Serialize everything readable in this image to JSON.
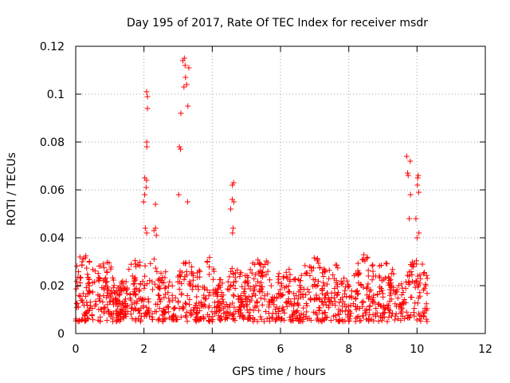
{
  "chart_data": {
    "type": "scatter",
    "title": "Day 195 of 2017, Rate Of TEC Index for receiver msdr",
    "xlabel": "GPS time / hours",
    "ylabel": "ROTI / TECUs",
    "xlim": [
      0,
      12
    ],
    "ylim": [
      0,
      0.12
    ],
    "xticks": [
      0,
      2,
      4,
      6,
      8,
      10,
      12
    ],
    "yticks": [
      0,
      0.02,
      0.04,
      0.06,
      0.08,
      0.1,
      0.12
    ],
    "xtick_labels": [
      "0",
      "2",
      "4",
      "6",
      "8",
      "10",
      "12"
    ],
    "ytick_labels": [
      "0",
      "0.02",
      "0.04",
      "0.06",
      "0.08",
      "0.1",
      "0.12"
    ],
    "grid": true,
    "marker": "+",
    "series": [
      {
        "name": "ROTI",
        "color": "#ff0000",
        "description": "Dense band 0.005-0.035 TECU across 0-10.3 h with isolated peaks",
        "background_range": [
          0.005,
          0.035
        ],
        "x_range": [
          0.0,
          10.3
        ],
        "peaks": [
          {
            "x": 2.05,
            "values": [
              0.101,
              0.099,
              0.094,
              0.08,
              0.078,
              0.065,
              0.064,
              0.061,
              0.058,
              0.055,
              0.044,
              0.042
            ]
          },
          {
            "x": 2.35,
            "values": [
              0.054,
              0.044,
              0.043,
              0.041
            ]
          },
          {
            "x": 3.05,
            "values": [
              0.058,
              0.078,
              0.077,
              0.092
            ]
          },
          {
            "x": 3.2,
            "values": [
              0.115,
              0.114,
              0.112,
              0.107,
              0.104,
              0.103
            ]
          },
          {
            "x": 3.3,
            "values": [
              0.111,
              0.095,
              0.055
            ]
          },
          {
            "x": 4.6,
            "values": [
              0.063,
              0.062,
              0.056,
              0.055,
              0.052,
              0.044,
              0.042
            ]
          },
          {
            "x": 9.75,
            "values": [
              0.074,
              0.072,
              0.067,
              0.066,
              0.058,
              0.048
            ]
          },
          {
            "x": 10.0,
            "values": [
              0.066,
              0.065,
              0.062,
              0.059,
              0.048,
              0.042,
              0.04
            ]
          }
        ]
      }
    ]
  }
}
